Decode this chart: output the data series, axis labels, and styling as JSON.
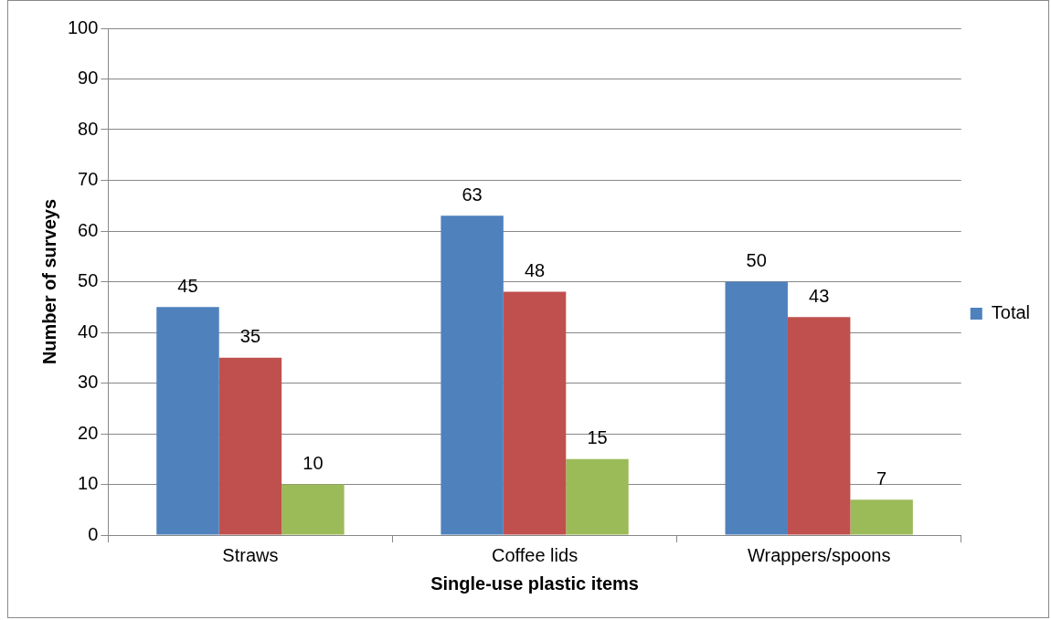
{
  "chart_data": {
    "type": "bar",
    "xlabel": "Single-use plastic items",
    "ylabel": "Number of surveys",
    "categories": [
      "Straws",
      "Coffee lids",
      "Wrappers/spoons"
    ],
    "series": [
      {
        "name": "Total",
        "color": "#4f81bd",
        "values": [
          45,
          63,
          50
        ]
      },
      {
        "color": "#c0504d",
        "values": [
          35,
          48,
          43
        ]
      },
      {
        "color": "#9bbb59",
        "values": [
          10,
          15,
          7
        ]
      }
    ],
    "ylim": [
      0,
      100
    ],
    "yticks": [
      0,
      10,
      20,
      30,
      40,
      50,
      60,
      70,
      80,
      90,
      100
    ],
    "grid": "y",
    "legend": "right",
    "data_labels": true
  }
}
